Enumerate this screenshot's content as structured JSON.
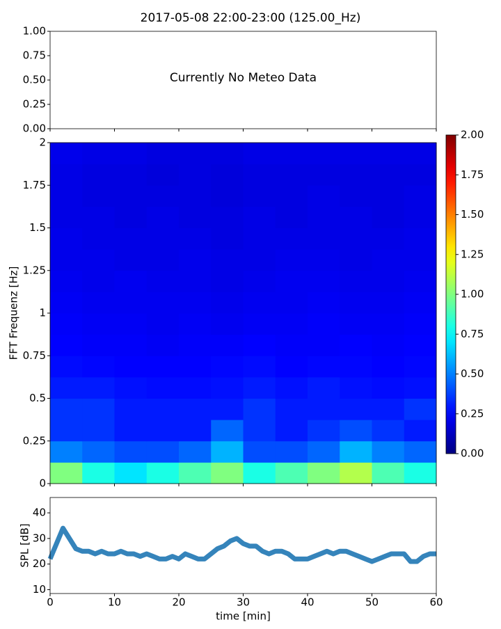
{
  "chart_data": [
    {
      "type": "blank",
      "title": "2017-05-08 22:00-23:00 (125.00_Hz)",
      "annotation": "Currently No Meteo Data",
      "xlim": [
        0,
        60
      ],
      "xticks": [
        0,
        10,
        20,
        30,
        40,
        50,
        60
      ],
      "ylim": [
        0,
        1
      ],
      "yticks": [
        {
          "value": 0,
          "label": "0.00"
        },
        {
          "value": 0.25,
          "label": "0.25"
        },
        {
          "value": 0.5,
          "label": "0.50"
        },
        {
          "value": 0.75,
          "label": "0.75"
        },
        {
          "value": 1,
          "label": "1.00"
        }
      ]
    },
    {
      "type": "heatmap",
      "ylabel": "FFT Frequenz [Hz]",
      "colormap": "jet",
      "xlim": [
        0,
        60
      ],
      "xticks": [
        0,
        10,
        20,
        30,
        40,
        50,
        60
      ],
      "ylim": [
        0,
        2
      ],
      "yticks": [
        0,
        0.25,
        0.5,
        0.75,
        1,
        1.25,
        1.5,
        1.75,
        2
      ],
      "x": [
        2.5,
        7.5,
        12.5,
        17.5,
        22.5,
        27.5,
        32.5,
        37.5,
        42.5,
        47.5,
        52.5,
        57.5
      ],
      "y": [
        0.0625,
        0.1875,
        0.3125,
        0.4375,
        0.5625,
        0.6875,
        0.8125,
        0.9375,
        1.0625,
        1.1875,
        1.3125,
        1.4375,
        1.5625,
        1.6875,
        1.8125,
        1.9375
      ],
      "z": [
        [
          1.0,
          0.8,
          0.7,
          0.8,
          0.9,
          1.0,
          0.8,
          0.9,
          1.0,
          1.1,
          0.9,
          0.8
        ],
        [
          0.5,
          0.45,
          0.4,
          0.4,
          0.45,
          0.6,
          0.4,
          0.4,
          0.45,
          0.6,
          0.5,
          0.45
        ],
        [
          0.35,
          0.35,
          0.3,
          0.3,
          0.3,
          0.45,
          0.35,
          0.3,
          0.35,
          0.4,
          0.35,
          0.3
        ],
        [
          0.35,
          0.35,
          0.3,
          0.3,
          0.3,
          0.3,
          0.35,
          0.3,
          0.3,
          0.3,
          0.3,
          0.35
        ],
        [
          0.3,
          0.3,
          0.28,
          0.27,
          0.27,
          0.28,
          0.3,
          0.28,
          0.3,
          0.28,
          0.27,
          0.28
        ],
        [
          0.27,
          0.26,
          0.25,
          0.25,
          0.25,
          0.26,
          0.27,
          0.25,
          0.26,
          0.26,
          0.25,
          0.26
        ],
        [
          0.25,
          0.24,
          0.24,
          0.23,
          0.24,
          0.24,
          0.25,
          0.24,
          0.24,
          0.25,
          0.24,
          0.25
        ],
        [
          0.24,
          0.23,
          0.23,
          0.22,
          0.23,
          0.22,
          0.23,
          0.23,
          0.24,
          0.23,
          0.23,
          0.24
        ],
        [
          0.23,
          0.22,
          0.22,
          0.22,
          0.22,
          0.21,
          0.22,
          0.22,
          0.23,
          0.22,
          0.22,
          0.23
        ],
        [
          0.22,
          0.21,
          0.22,
          0.21,
          0.21,
          0.2,
          0.21,
          0.22,
          0.22,
          0.21,
          0.21,
          0.22
        ],
        [
          0.21,
          0.21,
          0.2,
          0.2,
          0.21,
          0.2,
          0.2,
          0.21,
          0.21,
          0.2,
          0.21,
          0.21
        ],
        [
          0.21,
          0.2,
          0.2,
          0.2,
          0.2,
          0.19,
          0.2,
          0.2,
          0.2,
          0.2,
          0.2,
          0.21
        ],
        [
          0.2,
          0.2,
          0.19,
          0.2,
          0.19,
          0.19,
          0.2,
          0.19,
          0.2,
          0.2,
          0.19,
          0.2
        ],
        [
          0.2,
          0.19,
          0.19,
          0.19,
          0.19,
          0.18,
          0.19,
          0.19,
          0.2,
          0.19,
          0.19,
          0.2
        ],
        [
          0.2,
          0.19,
          0.19,
          0.18,
          0.19,
          0.18,
          0.19,
          0.19,
          0.19,
          0.19,
          0.19,
          0.19
        ],
        [
          0.21,
          0.2,
          0.2,
          0.19,
          0.19,
          0.19,
          0.2,
          0.2,
          0.2,
          0.2,
          0.2,
          0.2
        ]
      ],
      "zlim": [
        0,
        2
      ],
      "zticks": [
        {
          "value": 0,
          "label": "0.00"
        },
        {
          "value": 0.25,
          "label": "0.25"
        },
        {
          "value": 0.5,
          "label": "0.50"
        },
        {
          "value": 0.75,
          "label": "0.75"
        },
        {
          "value": 1,
          "label": "1.00"
        },
        {
          "value": 1.25,
          "label": "1.25"
        },
        {
          "value": 1.5,
          "label": "1.50"
        },
        {
          "value": 1.75,
          "label": "1.75"
        },
        {
          "value": 2,
          "label": "2.00"
        }
      ]
    },
    {
      "type": "line",
      "xlabel": "time [min]",
      "ylabel": "SPL [dB]",
      "xlim": [
        0,
        60
      ],
      "xticks": [
        0,
        10,
        20,
        30,
        40,
        50,
        60
      ],
      "ylim": [
        8.5,
        46
      ],
      "yticks": [
        10,
        20,
        30,
        40
      ],
      "x": [
        0,
        1,
        2,
        3,
        4,
        5,
        6,
        7,
        8,
        9,
        10,
        11,
        12,
        13,
        14,
        15,
        16,
        17,
        18,
        19,
        20,
        21,
        22,
        23,
        24,
        25,
        26,
        27,
        28,
        29,
        30,
        31,
        32,
        33,
        34,
        35,
        36,
        37,
        38,
        39,
        40,
        41,
        42,
        43,
        44,
        45,
        46,
        47,
        48,
        49,
        50,
        51,
        52,
        53,
        54,
        55,
        56,
        57,
        58,
        59,
        60
      ],
      "series": [
        {
          "color": "#1f77b4",
          "values": [
            22,
            28,
            34,
            30,
            26,
            25,
            25,
            24,
            25,
            24,
            24,
            25,
            24,
            24,
            23,
            24,
            23,
            22,
            22,
            23,
            22,
            24,
            23,
            22,
            22,
            24,
            26,
            27,
            29,
            30,
            28,
            27,
            27,
            25,
            24,
            25,
            25,
            24,
            22,
            22,
            22,
            23,
            24,
            25,
            24,
            25,
            25,
            24,
            23,
            22,
            21,
            22,
            23,
            24,
            24,
            24,
            21,
            21,
            23,
            24,
            24
          ]
        }
      ]
    }
  ]
}
